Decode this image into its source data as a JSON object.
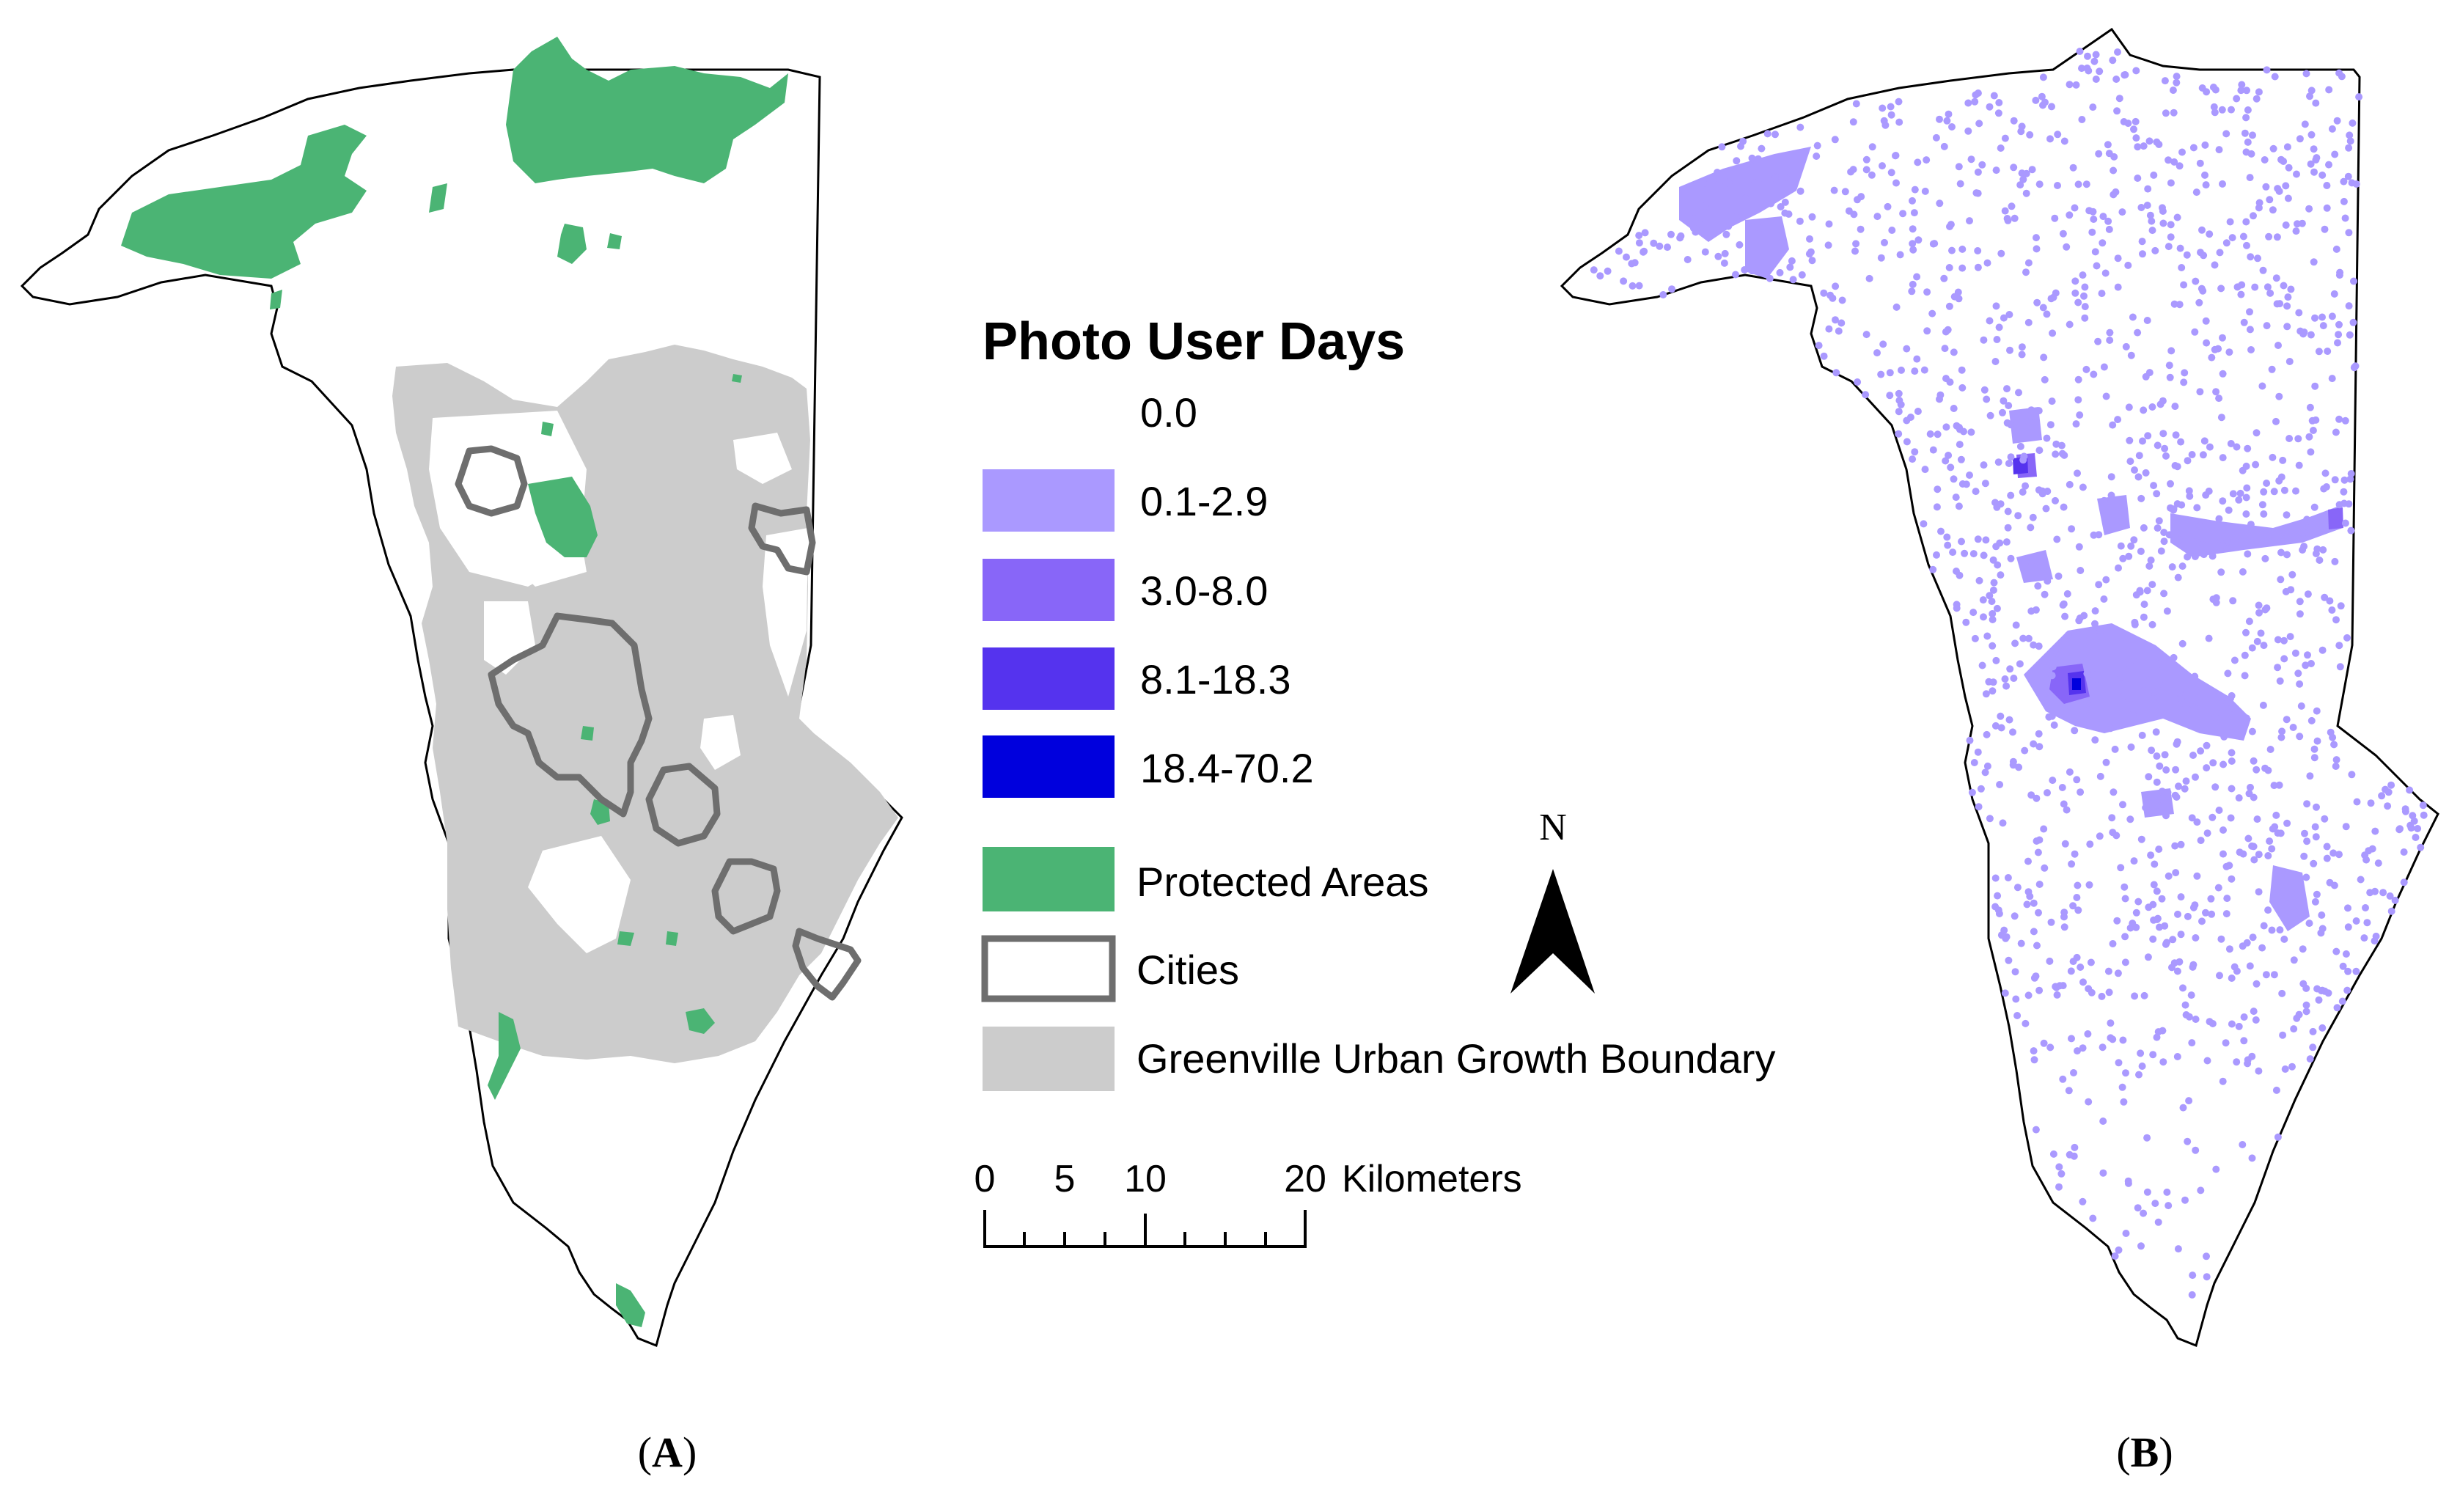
{
  "panels": {
    "a": {
      "label_open": "(",
      "label_letter": "A",
      "label_close": ")"
    },
    "b": {
      "label_open": "(",
      "label_letter": "B",
      "label_close": ")"
    }
  },
  "legend": {
    "title": "Photo User Days",
    "classes": [
      {
        "label": "0.0",
        "color": "#ffffff"
      },
      {
        "label": "0.1-2.9",
        "color": "#aa99ff"
      },
      {
        "label": "3.0-8.0",
        "color": "#8866f8"
      },
      {
        "label": "8.1-18.3",
        "color": "#5533ee"
      },
      {
        "label": "18.4-70.2",
        "color": "#0000dd"
      }
    ],
    "layers": [
      {
        "label": "Protected Areas",
        "color": "#4bb474"
      },
      {
        "label": "Cities",
        "color": "#6e6e6e"
      },
      {
        "label": "Greenville Urban Growth Boundary",
        "color": "#cccccc"
      }
    ]
  },
  "north_arrow": {
    "label": "N"
  },
  "scale_bar": {
    "ticks": [
      "0",
      "5",
      "10",
      "20"
    ],
    "unit": "Kilometers"
  },
  "colors": {
    "county_outline": "#000000",
    "protected": "#4bb474",
    "urban_growth": "#cccccc",
    "city_outline": "#6e6e6e",
    "photo_low": "#aa99ff",
    "photo_mid": "#8866f8",
    "photo_high": "#5533ee",
    "photo_top": "#0000dd"
  }
}
